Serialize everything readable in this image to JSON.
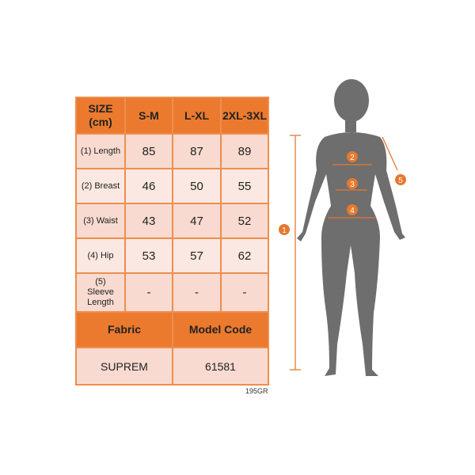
{
  "table": {
    "header": [
      "SIZE (cm)",
      "S-M",
      "L-XL",
      "2XL-3XL"
    ],
    "rows": [
      {
        "label": "(1) Length",
        "values": [
          "85",
          "87",
          "89"
        ]
      },
      {
        "label": "(2) Breast",
        "values": [
          "46",
          "50",
          "55"
        ]
      },
      {
        "label": "(3) Waist",
        "values": [
          "43",
          "47",
          "52"
        ]
      },
      {
        "label": "(4) Hip",
        "values": [
          "53",
          "57",
          "62"
        ]
      },
      {
        "label": "(5) Sleeve Length",
        "values": [
          "-",
          "-",
          "-"
        ]
      }
    ],
    "footer_headers": [
      "Fabric",
      "Model Code"
    ],
    "footer_values": [
      "SUPREM",
      "61581"
    ]
  },
  "code_label": "195GR",
  "markers": [
    "1",
    "2",
    "3",
    "4",
    "5"
  ],
  "colors": {
    "accent": "#EB7A2E",
    "row_a": "#F8DAD0",
    "row_b": "#FBE8E2",
    "silhouette": "#6E6E6E"
  }
}
